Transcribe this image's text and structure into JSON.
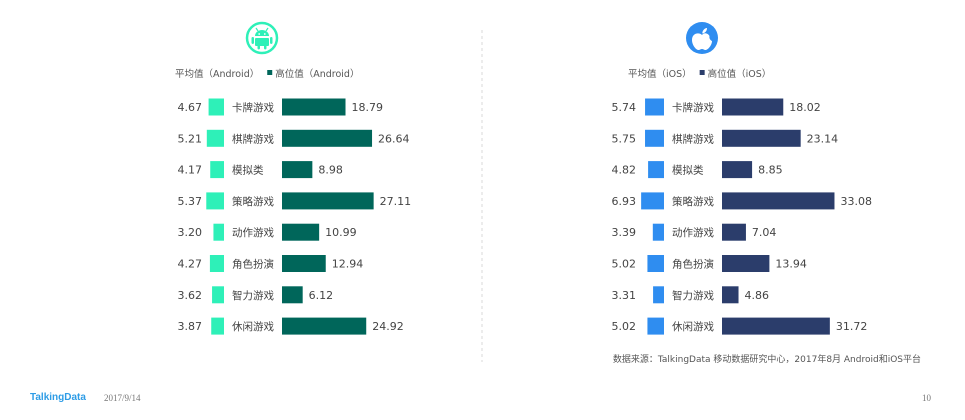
{
  "chart_data": [
    {
      "type": "bar",
      "platform": "Android",
      "categories": [
        "卡牌游戏",
        "棋牌游戏",
        "模拟类",
        "策略游戏",
        "动作游戏",
        "角色扮演",
        "智力游戏",
        "休闲游戏"
      ],
      "series": [
        {
          "name": "平均值（Android）",
          "values": [
            4.67,
            5.21,
            4.17,
            5.37,
            3.2,
            4.27,
            3.62,
            3.87
          ],
          "labels": [
            "4.67",
            "5.21",
            "4.17",
            "5.37",
            "3.20",
            "4.27",
            "3.62",
            "3.87"
          ],
          "color": "#2ef0b8"
        },
        {
          "name": "高位值（Android）",
          "values": [
            18.79,
            26.64,
            8.98,
            27.11,
            10.99,
            12.94,
            6.12,
            24.92
          ],
          "labels": [
            "18.79",
            "26.64",
            "8.98",
            "27.11",
            "10.99",
            "12.94",
            "6.12",
            "24.92"
          ],
          "color": "#00665a"
        }
      ],
      "icon": "android-icon",
      "icon_color": "#2ef0b8"
    },
    {
      "type": "bar",
      "platform": "iOS",
      "categories": [
        "卡牌游戏",
        "棋牌游戏",
        "模拟类",
        "策略游戏",
        "动作游戏",
        "角色扮演",
        "智力游戏",
        "休闲游戏"
      ],
      "series": [
        {
          "name": "平均值（iOS）",
          "values": [
            5.74,
            5.75,
            4.82,
            6.93,
            3.39,
            5.02,
            3.31,
            5.02
          ],
          "labels": [
            "5.74",
            "5.75",
            "4.82",
            "6.93",
            "3.39",
            "5.02",
            "3.31",
            "5.02"
          ],
          "color": "#2f8df0"
        },
        {
          "name": "高位值（iOS）",
          "values": [
            18.02,
            23.14,
            8.85,
            33.08,
            7.04,
            13.94,
            4.86,
            31.72
          ],
          "labels": [
            "18.02",
            "23.14",
            "8.85",
            "33.08",
            "7.04",
            "13.94",
            "4.86",
            "31.72"
          ],
          "color": "#2b3d6b"
        }
      ],
      "icon": "apple-icon",
      "icon_color": "#2f8df0"
    }
  ],
  "footer": {
    "source": "数据来源：TalkingData 移动数据研究中心，2017年8月 Android和iOS平台",
    "brand": "TalkingData",
    "date": "2017/9/14",
    "page": "10"
  }
}
